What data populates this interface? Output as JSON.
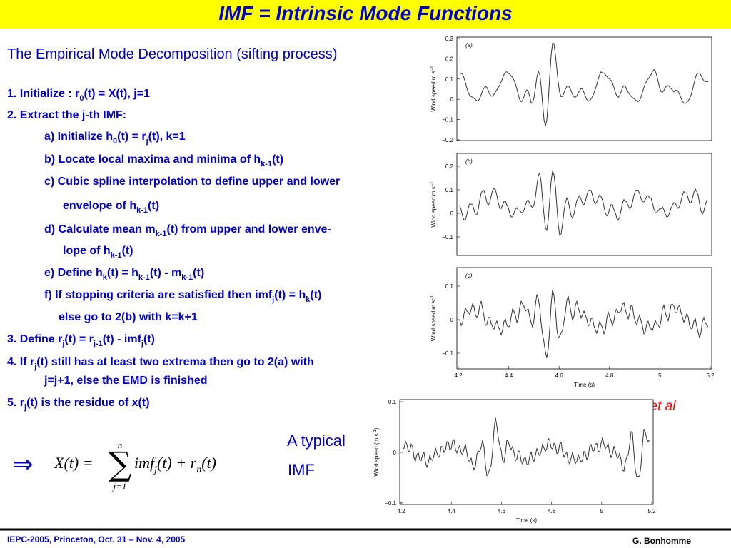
{
  "header": {
    "title": "IMF = Intrinsic Mode Functions"
  },
  "heading": "The Empirical Mode Decomposition (sifting process)",
  "steps": [
    [
      "1.  Initialize : r",
      "0",
      "(t) = X(t), j=1"
    ],
    [
      "2.  Extract the j-th IMF:"
    ],
    [
      "a) Initialize h",
      "0",
      "(t) = r",
      "j",
      "(t), k=1"
    ],
    [
      "b) Locate local maxima and minima of h",
      "k-1",
      "(t)"
    ],
    [
      "c) Cubic spline interpolation to define upper and lower"
    ],
    [
      "envelope of h",
      "k-1",
      "(t)"
    ],
    [
      "d) Calculate mean m",
      "k-1",
      "(t) from upper and lower enve-"
    ],
    [
      "lope of  h",
      "k-1",
      "(t)"
    ],
    [
      "e) Define h",
      "k",
      "(t) = h",
      "k-1",
      "(t) - m",
      "k-1",
      "(t)"
    ],
    [
      "f) If stopping criteria are satisfied then imf",
      "j",
      "(t) = h",
      "k",
      "(t)"
    ],
    [
      "else go to 2(b) with k=k+1"
    ],
    [
      "3.  Define  r",
      "j",
      "(t) = r",
      "j-1",
      "(t) - imf",
      "j",
      "(t)"
    ],
    [
      "4.  If  r",
      "j",
      "(t)  still has at least two extrema then go to  2(a) with"
    ],
    [
      "j=j+1, else the EMD  is finished"
    ],
    [
      "5.  r",
      "j",
      "(t) is the residue of x(t)"
    ]
  ],
  "formula": {
    "arrow": "⇒",
    "lhs": "X(t) =",
    "sum": "∑",
    "upper": "n",
    "lower": "j=1",
    "term": [
      "imf",
      "j",
      "(t) + r",
      "n",
      "(t)"
    ]
  },
  "caption": [
    "A typical",
    "IMF"
  ],
  "source": "from Huang et al",
  "figures": [
    {
      "panel": "(a)",
      "ylabel": [
        "Wind speed m s",
        "−1"
      ],
      "yticks": [
        "0.3",
        "0.2",
        "0.1",
        "0",
        "−0.1",
        "−0.2"
      ]
    },
    {
      "panel": "(b)",
      "ylabel": [
        "Wind speed  m s",
        "−1"
      ],
      "yticks": [
        "0.2",
        "0.1",
        "0",
        "−0.1"
      ]
    },
    {
      "panel": "(c)",
      "ylabel": [
        "Wind speed m s",
        "−1"
      ],
      "yticks": [
        "0.1",
        "0",
        "−0.1"
      ],
      "xticks": [
        "4.2",
        "4.4",
        "4.6",
        "4.8",
        "5",
        "5.2"
      ],
      "xlabel": "Time (s)"
    },
    {
      "ylabel": [
        "Wind speed (m s",
        "-1",
        ")"
      ],
      "yticks": [
        "0.1",
        "0",
        "−0.1"
      ],
      "xticks": [
        "4.2",
        "4.4",
        "4.6",
        "4.8",
        "5",
        "5.2"
      ],
      "xlabel": "Time (s)"
    }
  ],
  "footer": {
    "left": "IEPC-2005, Princeton, Oct. 31 – Nov. 4, 2005",
    "right": "G. Bonhomme"
  }
}
